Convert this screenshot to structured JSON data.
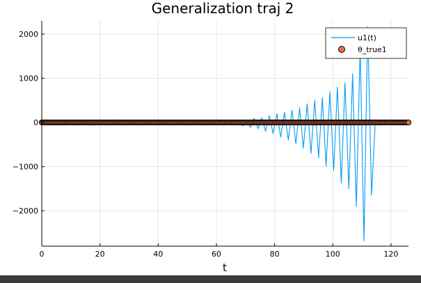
{
  "chart_data": {
    "type": "line",
    "title": "Generalization traj 2",
    "xlabel": "t",
    "ylabel": "",
    "xlim": [
      0,
      126
    ],
    "ylim": [
      -2800,
      2300
    ],
    "x_ticks": [
      0,
      20,
      40,
      60,
      80,
      100,
      120
    ],
    "x_tick_labels": [
      "0",
      "20",
      "40",
      "60",
      "80",
      "100",
      "120"
    ],
    "y_ticks": [
      -2000,
      -1000,
      0,
      1000,
      2000
    ],
    "y_tick_labels": [
      "−2000",
      "−1000",
      "0",
      "1000",
      "2000"
    ],
    "grid": true,
    "legend_position": "top-right",
    "series": [
      {
        "name": "u1(t)",
        "kind": "line",
        "color": "#009af9",
        "x": [
          0,
          20,
          40,
          58,
          60,
          61.3,
          62.6,
          63.9,
          65.2,
          66.5,
          67.8,
          69.1,
          70.4,
          71.7,
          73.0,
          74.3,
          75.6,
          76.9,
          78.2,
          79.5,
          80.8,
          82.1,
          83.4,
          84.7,
          86.0,
          87.3,
          88.6,
          89.9,
          91.2,
          92.5,
          93.8,
          95.1,
          96.4,
          97.7,
          99.0,
          100.3,
          101.6,
          102.9,
          104.2,
          105.5,
          106.8,
          108.1,
          109.4,
          110.7,
          112.0,
          113.3,
          114.6,
          115.9,
          117.2,
          118.5,
          119.8,
          121.1,
          122.4,
          123.7,
          125.0,
          126.0
        ],
        "y": [
          0,
          0,
          0,
          0,
          20,
          -30,
          25,
          -40,
          35,
          -55,
          50,
          -80,
          60,
          -110,
          90,
          -140,
          110,
          -200,
          150,
          -250,
          200,
          -330,
          230,
          -400,
          280,
          -480,
          330,
          -580,
          420,
          -700,
          500,
          -800,
          560,
          -990,
          700,
          -1090,
          800,
          -1370,
          900,
          -1500,
          1100,
          -1900,
          1700,
          -2680,
          2170,
          -1650,
          0,
          0,
          0,
          0,
          0,
          0,
          0,
          0,
          0,
          0
        ]
      },
      {
        "name": "θ_true1",
        "kind": "scatter",
        "color": "#e26f46",
        "x_start": 0,
        "x_end": 126,
        "value": 0
      }
    ]
  }
}
